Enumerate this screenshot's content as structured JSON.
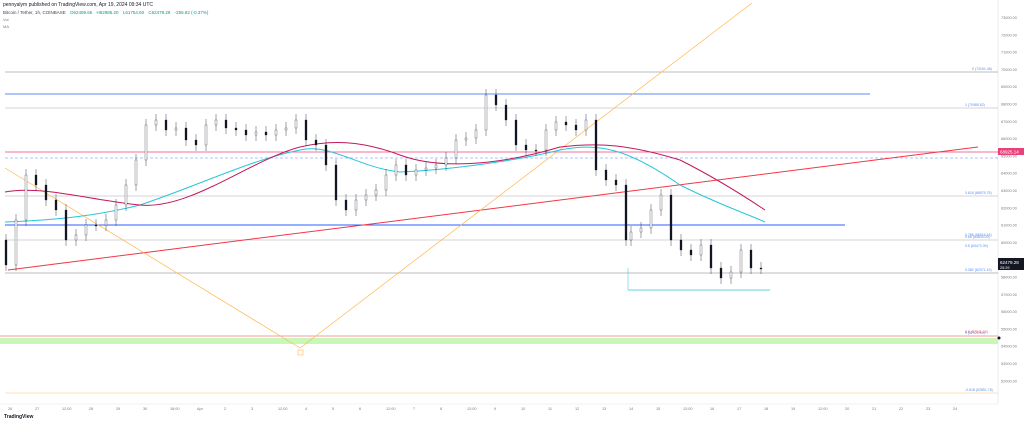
{
  "header": {
    "publisher": "pennyalym published on TradingView.com, Apr 19, 2024 09:34 UTC",
    "symbol": "Bitcoin / Tether, 1h, COINBASE",
    "open": "O62499.66",
    "high": "H62985.20",
    "low": "L61754.60",
    "close": "C62479.28",
    "change": "-255.82 (-0.37%)",
    "sub1": "Vol",
    "sub2": "MA"
  },
  "price_axis": {
    "ticks": [
      "73000.00",
      "72000.00",
      "71000.00",
      "70000.00",
      "69000.00",
      "68000.00",
      "67000.00",
      "66000.00",
      "65000.00",
      "64000.00",
      "63000.00",
      "62000.00",
      "61000.00",
      "60000.00",
      "59000.00",
      "58000.00",
      "57000.00",
      "56000.00",
      "55000.00",
      "54000.00",
      "53000.00",
      "52000.00"
    ],
    "price_tag": "68925.14",
    "current_price": "62479.28",
    "current_time": "25:29"
  },
  "time_axis": {
    "labels": [
      "26",
      "27",
      "12:00",
      "28",
      "29",
      "30",
      "18:00",
      "Apr",
      "2",
      "3",
      "12:00",
      "4",
      "5",
      "6",
      "12:00",
      "7",
      "8",
      "12:00",
      "9",
      "10",
      "11",
      "12",
      "13",
      "14",
      "15",
      "12:00",
      "16",
      "17",
      "18",
      "19",
      "12:00",
      "20",
      "21",
      "22",
      "23",
      "24"
    ]
  },
  "fib_labels": [
    "0 (73191.48)",
    "1 (70985.52)",
    "0.618 (68975.75)",
    "0.786 (66916.43)",
    "0.65 (64830.00)",
    "0.5 (63470.39)",
    "0.382 (62371.19)",
    "0.5 (57041.24)",
    "0 (57021.00)",
    "-0.618 (52851.76)"
  ],
  "brand": "TradingView",
  "colors": {
    "price_tag": "#ec407a",
    "ma_teal": "#26c6da",
    "ma_purple": "#c2185b",
    "blue_level": "#5b8def",
    "red_trend": "#f23645",
    "orange_line": "#ffb74d",
    "green_zone": "#c8f7b8"
  }
}
